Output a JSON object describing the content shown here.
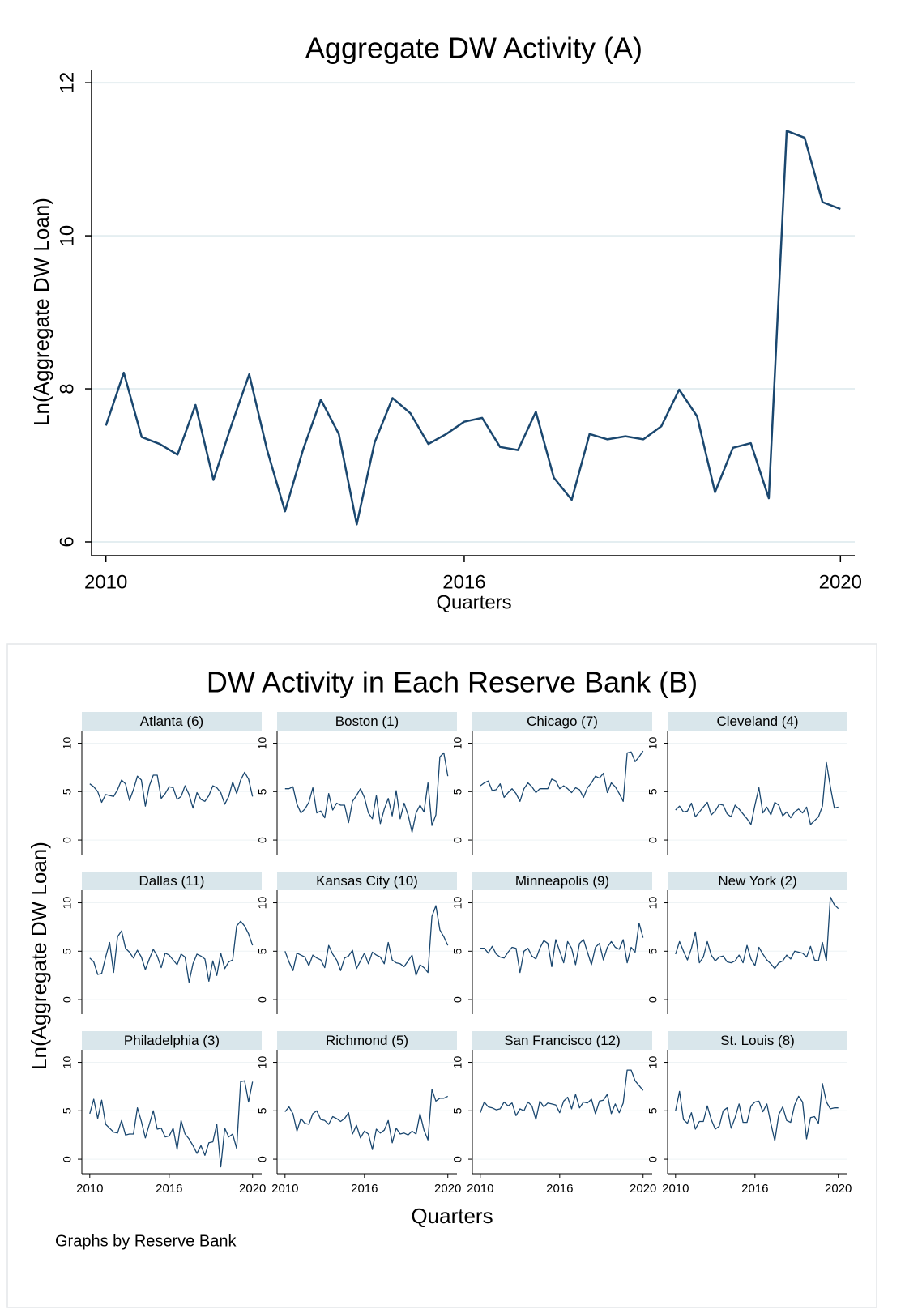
{
  "chart_data": [
    {
      "type": "line",
      "title": "Aggregate DW Activity (A)",
      "xlabel": "Quarters",
      "ylabel": "Ln(Aggregate DW Loan)",
      "color": "#1a476f",
      "grid": true,
      "xlim": [
        -0.8,
        41.8
      ],
      "xticks": [
        {
          "value": 0,
          "label": "2010"
        },
        {
          "value": 20,
          "label": "2016"
        },
        {
          "value": 41,
          "label": "2020"
        }
      ],
      "ylim": [
        5.82,
        12.16
      ],
      "yticks": [
        6,
        8,
        10,
        12
      ],
      "values": [
        7.52,
        8.21,
        7.37,
        7.28,
        7.14,
        7.79,
        6.81,
        7.52,
        8.19,
        7.2,
        6.4,
        7.2,
        7.86,
        7.41,
        6.23,
        7.3,
        7.88,
        7.68,
        7.28,
        7.41,
        7.57,
        7.62,
        7.24,
        7.2,
        7.7,
        6.84,
        6.55,
        7.41,
        7.34,
        7.38,
        7.34,
        7.51,
        7.99,
        7.64,
        6.65,
        7.23,
        7.29,
        6.57,
        11.37,
        11.28,
        10.44,
        10.35
      ]
    },
    {
      "type": "small-multiples",
      "title": "DW Activity in Each Reserve Bank (B)",
      "xlabel": "Quarters",
      "ylabel": "Ln(Aggregate DW Loan)",
      "note": "Graphs by Reserve Bank",
      "color": "#1a476f",
      "grid": true,
      "xlim": [
        -2,
        43.3
      ],
      "xticks": [
        {
          "value": 0,
          "label": "2010"
        },
        {
          "value": 20,
          "label": "2016"
        },
        {
          "value": 41,
          "label": "2020"
        }
      ],
      "ylim": [
        -1.5,
        11.3
      ],
      "yticks": [
        0,
        5,
        10
      ],
      "panels": [
        {
          "title": "Atlanta (6)",
          "values": [
            5.8,
            5.5,
            5.0,
            3.9,
            4.7,
            4.6,
            4.5,
            5.2,
            6.2,
            5.8,
            4.1,
            5.2,
            6.6,
            6.2,
            3.5,
            5.6,
            6.7,
            6.7,
            4.3,
            4.8,
            5.5,
            5.4,
            4.2,
            4.5,
            5.6,
            4.7,
            3.3,
            4.9,
            4.2,
            4.0,
            4.6,
            5.6,
            5.4,
            4.9,
            3.7,
            4.5,
            6.0,
            4.8,
            6.2,
            7.0,
            6.3,
            4.5
          ]
        },
        {
          "title": "Boston (1)",
          "values": [
            5.3,
            5.3,
            5.5,
            3.7,
            2.8,
            3.2,
            3.9,
            5.4,
            2.8,
            3.0,
            2.3,
            4.8,
            3.1,
            3.8,
            3.6,
            3.6,
            1.8,
            4.0,
            4.6,
            5.3,
            4.4,
            2.8,
            2.2,
            4.6,
            1.7,
            3.2,
            4.3,
            2.5,
            5.1,
            2.2,
            3.8,
            2.6,
            0.8,
            2.8,
            3.6,
            2.9,
            5.9,
            1.5,
            2.6,
            8.6,
            9.0,
            6.6
          ]
        },
        {
          "title": "Chicago (7)",
          "values": [
            5.6,
            5.9,
            6.1,
            5.1,
            5.2,
            5.8,
            4.4,
            4.9,
            5.3,
            4.8,
            4.0,
            5.3,
            5.9,
            5.5,
            4.9,
            5.3,
            5.3,
            5.3,
            6.3,
            6.1,
            5.3,
            5.6,
            5.3,
            4.9,
            5.4,
            5.2,
            4.4,
            5.4,
            5.9,
            6.6,
            6.4,
            6.9,
            4.9,
            5.9,
            5.5,
            4.8,
            4.0,
            9.0,
            9.1,
            8.1,
            8.6,
            9.2
          ]
        },
        {
          "title": "Cleveland (4)",
          "values": [
            3.1,
            3.5,
            2.9,
            3.0,
            3.8,
            2.4,
            2.9,
            3.4,
            3.9,
            2.6,
            3.0,
            3.7,
            3.6,
            2.7,
            2.4,
            3.6,
            3.2,
            2.7,
            2.2,
            1.6,
            3.6,
            5.4,
            2.8,
            3.4,
            2.6,
            3.9,
            3.6,
            2.5,
            2.9,
            2.3,
            2.9,
            3.2,
            2.8,
            3.4,
            1.6,
            2.0,
            2.4,
            3.5,
            8.0,
            5.5,
            3.3,
            3.4
          ]
        },
        {
          "title": "Dallas (11)",
          "values": [
            4.3,
            3.9,
            2.6,
            2.7,
            4.4,
            5.9,
            2.8,
            6.5,
            7.1,
            5.3,
            4.9,
            4.3,
            5.1,
            4.4,
            3.1,
            4.2,
            5.2,
            4.5,
            3.3,
            4.8,
            4.6,
            4.1,
            3.6,
            4.7,
            4.4,
            1.8,
            3.7,
            4.7,
            4.5,
            4.2,
            1.9,
            4.0,
            2.5,
            4.8,
            3.2,
            3.9,
            4.1,
            7.6,
            8.1,
            7.6,
            6.8,
            5.6
          ]
        },
        {
          "title": "Kansas City (10)",
          "values": [
            5.0,
            3.9,
            3.0,
            4.8,
            4.6,
            4.4,
            3.5,
            4.6,
            4.3,
            4.1,
            3.3,
            5.6,
            4.7,
            4.1,
            3.0,
            4.3,
            4.5,
            5.1,
            3.2,
            4.0,
            4.8,
            3.7,
            4.9,
            4.6,
            4.4,
            3.7,
            5.9,
            4.1,
            3.8,
            3.7,
            3.4,
            4.0,
            4.6,
            2.5,
            3.6,
            3.3,
            2.8,
            8.6,
            9.7,
            7.2,
            6.5,
            5.6
          ]
        },
        {
          "title": "Minneapolis (9)",
          "values": [
            5.3,
            5.3,
            4.8,
            5.5,
            4.7,
            4.4,
            4.3,
            4.9,
            5.4,
            5.3,
            2.8,
            5.0,
            5.3,
            4.5,
            4.2,
            5.3,
            6.1,
            5.8,
            3.4,
            6.2,
            5.0,
            3.8,
            6.0,
            5.3,
            3.6,
            5.8,
            6.2,
            4.9,
            3.6,
            5.4,
            5.8,
            4.1,
            5.4,
            6.0,
            5.4,
            5.2,
            6.2,
            3.8,
            5.4,
            4.9,
            7.9,
            6.4
          ]
        },
        {
          "title": "New York (2)",
          "values": [
            4.7,
            6.0,
            5.0,
            4.1,
            5.3,
            7.0,
            3.8,
            4.4,
            6.0,
            4.6,
            4.0,
            4.4,
            4.5,
            3.9,
            3.8,
            4.0,
            4.6,
            3.8,
            5.6,
            4.2,
            3.5,
            5.4,
            4.7,
            4.1,
            3.7,
            3.2,
            3.8,
            4.0,
            4.6,
            4.2,
            5.0,
            4.9,
            4.8,
            4.4,
            5.5,
            4.1,
            4.0,
            5.9,
            4.0,
            10.6,
            9.8,
            9.4
          ]
        },
        {
          "title": "Philadelphia (3)",
          "values": [
            4.7,
            6.2,
            4.2,
            6.1,
            3.6,
            3.2,
            2.8,
            2.7,
            4.0,
            2.5,
            2.6,
            2.6,
            5.3,
            3.9,
            2.2,
            3.6,
            5.0,
            3.1,
            3.2,
            2.3,
            2.4,
            3.2,
            1.0,
            4.0,
            2.6,
            2.1,
            1.4,
            0.6,
            1.4,
            0.4,
            1.7,
            1.8,
            3.6,
            -0.8,
            3.2,
            2.3,
            2.6,
            1.1,
            8.0,
            8.1,
            5.9,
            8.0
          ]
        },
        {
          "title": "Richmond (5)",
          "values": [
            4.9,
            5.4,
            4.7,
            2.9,
            4.2,
            3.7,
            3.6,
            4.7,
            5.0,
            4.1,
            4.0,
            3.6,
            4.4,
            4.2,
            3.9,
            4.2,
            4.8,
            2.6,
            3.5,
            2.2,
            2.9,
            2.6,
            1.0,
            3.1,
            2.7,
            3.0,
            4.0,
            1.7,
            3.2,
            2.6,
            2.7,
            2.5,
            2.9,
            2.6,
            4.7,
            3.0,
            2.0,
            7.2,
            6.0,
            6.3,
            6.3,
            6.5
          ]
        },
        {
          "title": "San Francisco (12)",
          "values": [
            4.8,
            5.9,
            5.4,
            5.3,
            5.1,
            5.2,
            5.9,
            5.5,
            5.8,
            4.5,
            5.2,
            5.0,
            5.9,
            5.5,
            4.1,
            6.0,
            5.4,
            5.8,
            5.7,
            5.6,
            4.8,
            6.0,
            6.4,
            5.2,
            6.7,
            5.3,
            5.9,
            5.8,
            6.2,
            4.7,
            6.0,
            6.1,
            6.7,
            4.7,
            5.7,
            4.8,
            5.8,
            9.2,
            9.2,
            8.1,
            7.6,
            7.1
          ]
        },
        {
          "title": "St. Louis (8)",
          "values": [
            5.0,
            7.0,
            4.1,
            3.7,
            4.8,
            3.1,
            3.9,
            3.9,
            5.5,
            4.1,
            3.1,
            3.4,
            5.0,
            5.3,
            3.2,
            4.3,
            5.7,
            3.8,
            3.8,
            5.5,
            5.9,
            6.0,
            4.9,
            5.7,
            3.7,
            1.9,
            4.6,
            5.4,
            4.0,
            3.8,
            5.6,
            6.5,
            5.9,
            2.1,
            4.3,
            4.4,
            3.7,
            7.8,
            5.9,
            5.2,
            5.3,
            5.3
          ]
        }
      ]
    }
  ]
}
